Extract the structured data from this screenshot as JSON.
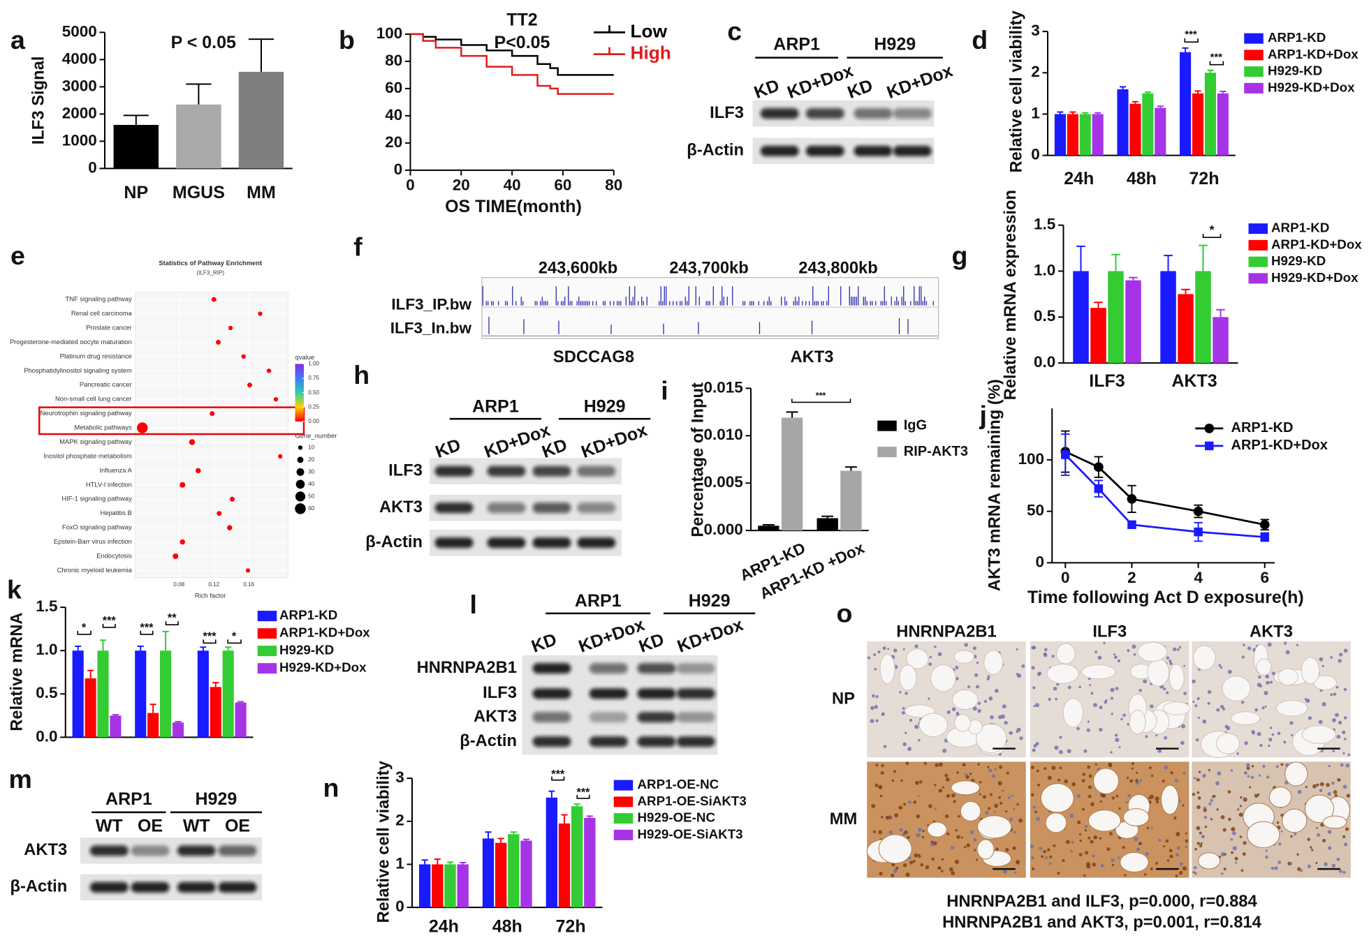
{
  "chart_data": [
    {
      "panel": "a",
      "type": "bar",
      "categories": [
        "NP",
        "MGUS",
        "MM"
      ],
      "values": [
        1600,
        2350,
        3550
      ],
      "errors": [
        350,
        750,
        1200
      ],
      "colors": [
        "#000000",
        "#a9a9ab",
        "#7f7f7f"
      ],
      "ylabel": "ILF3 Signal",
      "ylim": [
        0,
        5000
      ],
      "yticks": [
        0,
        1000,
        2000,
        3000,
        4000,
        5000
      ],
      "annotations": [
        "P < 0.05"
      ]
    },
    {
      "panel": "b",
      "type": "step",
      "title": "TT2",
      "annotations": [
        "P<0.05"
      ],
      "xlabel": "OS TIME(month)",
      "xlim": [
        0,
        80
      ],
      "xticks": [
        0,
        20,
        40,
        60,
        80
      ],
      "ylim": [
        0,
        100
      ],
      "yticks": [
        0,
        20,
        40,
        60,
        80,
        100
      ],
      "series": [
        {
          "name": "Low",
          "color": "#000000",
          "x": [
            0,
            5,
            10,
            20,
            30,
            40,
            50,
            55,
            58,
            70,
            80
          ],
          "values": [
            100,
            98,
            96,
            92,
            88,
            84,
            78,
            75,
            70,
            70,
            70
          ]
        },
        {
          "name": "High",
          "color": "#e31a1c",
          "x": [
            0,
            5,
            10,
            20,
            30,
            40,
            50,
            55,
            58,
            70,
            80
          ],
          "values": [
            100,
            95,
            90,
            84,
            76,
            70,
            62,
            60,
            56,
            56,
            56
          ]
        }
      ]
    },
    {
      "panel": "d",
      "type": "bar",
      "categories": [
        "24h",
        "48h",
        "72h"
      ],
      "ylabel": "Relative cell viability",
      "ylim": [
        0,
        3
      ],
      "yticks": [
        0,
        1,
        2,
        3
      ],
      "annotations": [
        "***",
        "***"
      ],
      "series": [
        {
          "name": "ARP1-KD",
          "color": "#1a1aff",
          "values": [
            1,
            1.6,
            2.5
          ],
          "errors": [
            0.05,
            0.06,
            0.1
          ]
        },
        {
          "name": "ARP1-KD+Dox",
          "color": "#ff0000",
          "values": [
            1,
            1.25,
            1.5
          ],
          "errors": [
            0.05,
            0.05,
            0.06
          ]
        },
        {
          "name": "H929-KD",
          "color": "#33cc33",
          "values": [
            1,
            1.5,
            2.0
          ],
          "errors": [
            0.03,
            0.03,
            0.06
          ]
        },
        {
          "name": "H929-KD+Dox",
          "color": "#a633e6",
          "values": [
            1,
            1.15,
            1.5
          ],
          "errors": [
            0.03,
            0.04,
            0.05
          ]
        }
      ]
    },
    {
      "panel": "e",
      "type": "dot",
      "title": "Statistics of Pathway Enrichment",
      "subtitle": "(ILF3_RIP)",
      "xlabel": "Rich factor",
      "xlim": [
        0.03,
        0.205
      ],
      "xticks": [
        0.08,
        0.12,
        0.16
      ],
      "categories": [
        "TNF signaling pathway",
        "Renal cell carcinoma",
        "Prostate cancer",
        "Progesterone-mediated oocyte maturation",
        "Platinum drug resistance",
        "Phosphatidylinositol signaling system",
        "Pancreatic cancer",
        "Non-small cell lung cancer",
        "Neurotrophin signaling pathway",
        "Metabolic pathways",
        "MAPK signaling pathway",
        "Inositol phosphate metabolism",
        "Influenza A",
        "HTLV-I infection",
        "HIF-1 signaling pathway",
        "Hepatitis B",
        "FoxO signaling pathway",
        "Epstein-Barr virus infection",
        "Endocytosis",
        "Chronic myeloid leukemia"
      ],
      "values": [
        0.12,
        0.173,
        0.139,
        0.125,
        0.154,
        0.183,
        0.161,
        0.191,
        0.118,
        0.038,
        0.095,
        0.196,
        0.102,
        0.084,
        0.141,
        0.126,
        0.138,
        0.084,
        0.076,
        0.159
      ],
      "sizes": [
        12,
        10,
        10,
        12,
        10,
        10,
        12,
        10,
        12,
        60,
        18,
        10,
        14,
        16,
        12,
        12,
        14,
        14,
        16,
        10
      ],
      "color": "#ff0000",
      "color_legend": {
        "title": "qvalue",
        "ticks": [
          {
            "value": 1,
            "label": "1.00"
          },
          {
            "value": 0.75,
            "label": "0.75"
          },
          {
            "value": 0.5,
            "label": "0.50"
          },
          {
            "value": 0.25,
            "label": "0.25"
          },
          {
            "value": 0,
            "label": "0.00"
          }
        ]
      },
      "size_legend": {
        "title": "Gene_number",
        "ticks": [
          10,
          20,
          30,
          40,
          50,
          60
        ]
      }
    },
    {
      "panel": "g",
      "type": "bar",
      "categories": [
        "ILF3",
        "AKT3"
      ],
      "ylabel": "Relative mRNA expression",
      "ylim": [
        0,
        1.5
      ],
      "yticks": [
        {
          "value": 0,
          "label": "0.0"
        },
        0.5,
        {
          "value": 1,
          "label": "1.0"
        },
        1.5
      ],
      "annotations": [
        "*"
      ],
      "series": [
        {
          "name": "ARP1-KD",
          "color": "#1a1aff",
          "values": [
            1.0,
            1.0
          ],
          "errors": [
            0.27,
            0.17
          ]
        },
        {
          "name": "ARP1-KD+Dox",
          "color": "#ff0000",
          "values": [
            0.6,
            0.75
          ],
          "errors": [
            0.06,
            0.05
          ]
        },
        {
          "name": "H929-KD",
          "color": "#33cc33",
          "values": [
            1.0,
            1.0
          ],
          "errors": [
            0.18,
            0.28
          ]
        },
        {
          "name": "H929-KD+Dox",
          "color": "#a633e6",
          "values": [
            0.9,
            0.5
          ],
          "errors": [
            0.03,
            0.08
          ]
        }
      ]
    },
    {
      "panel": "i",
      "type": "bar",
      "categories": [
        "ARP1-KD",
        "ARP1-KD +Dox"
      ],
      "ylabel": "Percentage of Input",
      "ylim": [
        0,
        0.015
      ],
      "yticks": [
        {
          "value": 0,
          "label": "0.000"
        },
        0.005,
        {
          "value": 0.01,
          "label": "0.010"
        },
        0.015
      ],
      "annotations": [
        "***"
      ],
      "series": [
        {
          "name": "IgG",
          "color": "#000000",
          "values": [
            0.0005,
            0.0013
          ],
          "errors": [
            0.0001,
            0.0002
          ]
        },
        {
          "name": "RIP-AKT3",
          "color": "#a6a6a6",
          "values": [
            0.0119,
            0.0063
          ],
          "errors": [
            0.0006,
            0.0004
          ]
        }
      ]
    },
    {
      "panel": "j",
      "type": "line",
      "x": [
        0,
        1,
        2,
        4,
        6
      ],
      "xlabel": "Time following Act D exposure(h)",
      "ylabel": "AKT3 mRNA remaining (%)",
      "xlim": [
        -0.4,
        6.3
      ],
      "xticks": [
        0,
        2,
        4,
        6
      ],
      "ylim": [
        0,
        150
      ],
      "yticks": [
        0,
        50,
        100
      ],
      "series": [
        {
          "name": "ARP1-KD",
          "color": "#000000",
          "marker": "circle",
          "values": [
            108,
            93,
            62,
            50,
            37
          ],
          "errors": [
            20,
            10,
            13,
            6,
            5
          ]
        },
        {
          "name": "ARP1-KD+Dox",
          "color": "#1a1aff",
          "marker": "square",
          "values": [
            105,
            72,
            37,
            30,
            25
          ],
          "errors": [
            20,
            8,
            3,
            9,
            4
          ]
        }
      ]
    },
    {
      "panel": "k",
      "type": "bar",
      "categories": [
        null,
        null,
        null
      ],
      "ylabel": "Relative mRNA",
      "ylim": [
        0,
        1.5
      ],
      "yticks": [
        {
          "value": 0,
          "label": "0.0"
        },
        0.5,
        {
          "value": 1,
          "label": "1.0"
        },
        1.5
      ],
      "annotations": [
        "*",
        "***",
        "***",
        "**",
        "***",
        "*"
      ],
      "series": [
        {
          "name": "ARP1-KD",
          "color": "#1a1aff",
          "values": [
            1,
            1,
            1
          ],
          "errors": [
            0.05,
            0.05,
            0.04
          ]
        },
        {
          "name": "ARP1-KD+Dox",
          "color": "#ff0000",
          "values": [
            0.68,
            0.28,
            0.58
          ],
          "errors": [
            0.09,
            0.1,
            0.05
          ]
        },
        {
          "name": "H929-KD",
          "color": "#33cc33",
          "values": [
            1,
            1,
            1
          ],
          "errors": [
            0.12,
            0.22,
            0.04
          ]
        },
        {
          "name": "H929-KD+Dox",
          "color": "#a633e6",
          "values": [
            0.25,
            0.17,
            0.4
          ],
          "errors": [
            0.01,
            0.01,
            0.01
          ]
        }
      ]
    },
    {
      "panel": "n",
      "type": "bar",
      "categories": [
        "24h",
        "48h",
        "72h"
      ],
      "ylabel": "Relative cell viability",
      "ylim": [
        0,
        3
      ],
      "yticks": [
        0,
        1,
        2,
        3
      ],
      "annotations": [
        "***",
        "***"
      ],
      "series": [
        {
          "name": "ARP1-OE-NC",
          "color": "#1a1aff",
          "values": [
            1,
            1.6,
            2.55
          ],
          "errors": [
            0.1,
            0.15,
            0.15
          ]
        },
        {
          "name": "ARP1-OE-SiAKT3",
          "color": "#ff0000",
          "values": [
            1,
            1.5,
            1.95
          ],
          "errors": [
            0.12,
            0.1,
            0.2
          ]
        },
        {
          "name": "H929-OE-NC",
          "color": "#33cc33",
          "values": [
            1,
            1.7,
            2.35
          ],
          "errors": [
            0.05,
            0.05,
            0.05
          ]
        },
        {
          "name": "H929-OE-SiAKT3",
          "color": "#a633e6",
          "values": [
            1,
            1.55,
            2.08
          ],
          "errors": [
            0.04,
            0.03,
            0.04
          ]
        }
      ]
    }
  ],
  "blots": [
    {
      "panel": "c",
      "groups": [
        "ARP1",
        "H929"
      ],
      "lanes": [
        "KD",
        "KD+Dox",
        "KD",
        "KD+Dox"
      ],
      "rows": [
        "ILF3",
        "β-Actin"
      ]
    },
    {
      "panel": "h",
      "groups": [
        "ARP1",
        "H929"
      ],
      "lanes": [
        "KD",
        "KD+Dox",
        "KD",
        "KD+Dox"
      ],
      "rows": [
        "ILF3",
        "AKT3",
        "β-Actin"
      ]
    },
    {
      "panel": "l",
      "groups": [
        "ARP1",
        "H929"
      ],
      "lanes": [
        "KD",
        "KD+Dox",
        "KD",
        "KD+Dox"
      ],
      "rows": [
        "HNRNPA2B1",
        "ILF3",
        "AKT3",
        "β-Actin"
      ]
    },
    {
      "panel": "m",
      "groups": [
        "ARP1",
        "H929"
      ],
      "lanes": [
        "WT",
        "OE",
        "WT",
        "OE"
      ],
      "rows": [
        "AKT3",
        "β-Actin"
      ]
    }
  ],
  "track": {
    "panel": "f",
    "coordinates": [
      "243,600kb",
      "243,700kb",
      "243,800kb"
    ],
    "tracks": [
      "ILF3_IP.bw",
      "ILF3_In.bw"
    ],
    "genes": [
      "SDCCAG8",
      "AKT3"
    ]
  },
  "ihc": {
    "panel": "o",
    "columns": [
      "HNRNPA2B1",
      "ILF3",
      "AKT3"
    ],
    "rows": [
      "NP",
      "MM"
    ],
    "stats": [
      "HNRNPA2B1 and ILF3, p=0.000, r=0.884",
      "HNRNPA2B1 and AKT3, p=0.001, r=0.814"
    ]
  }
}
